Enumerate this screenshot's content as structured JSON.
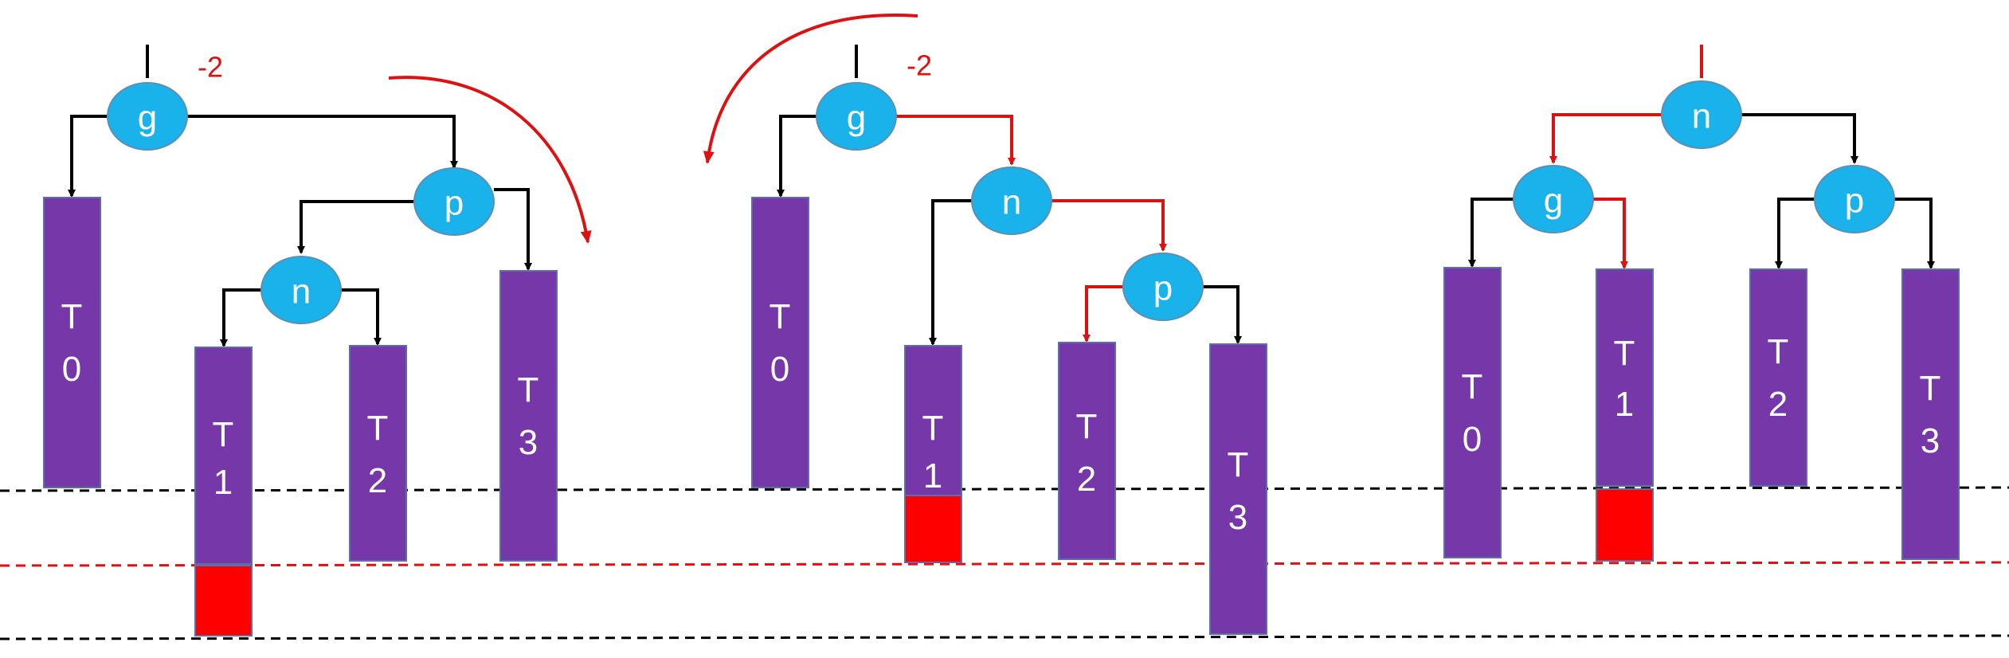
{
  "colors": {
    "node_fill": "#1AB2EA",
    "node_stroke": "#5A8FB8",
    "subtree_fill": "#7637A8",
    "subtree_stroke": "#5B6FA8",
    "height_block": "#FF0000",
    "edge_black": "#000000",
    "edge_red": "#DD1111",
    "guide_black": "#000000",
    "guide_red": "#DD1111",
    "text_white": "#FFFFFF"
  },
  "panels": [
    {
      "id": "before",
      "balance_factor": "-2",
      "nodes": [
        {
          "id": "g",
          "label": "g"
        },
        {
          "id": "p",
          "label": "p"
        },
        {
          "id": "n",
          "label": "n"
        }
      ],
      "subtrees": [
        {
          "id": "t0",
          "label": [
            "T",
            "0"
          ],
          "extra_block": false
        },
        {
          "id": "t1",
          "label": [
            "T",
            "1"
          ],
          "extra_block": true
        },
        {
          "id": "t2",
          "label": [
            "T",
            "2"
          ],
          "extra_block": false
        },
        {
          "id": "t3",
          "label": [
            "T",
            "3"
          ],
          "extra_block": false
        }
      ],
      "rotation_arrow": "clockwise-right"
    },
    {
      "id": "after-first-rotation",
      "balance_factor": "-2",
      "nodes": [
        {
          "id": "g",
          "label": "g"
        },
        {
          "id": "n",
          "label": "n"
        },
        {
          "id": "p",
          "label": "p"
        }
      ],
      "subtrees": [
        {
          "id": "t0",
          "label": [
            "T",
            "0"
          ],
          "extra_block": false
        },
        {
          "id": "t1",
          "label": [
            "T",
            "1"
          ],
          "extra_block": true
        },
        {
          "id": "t2",
          "label": [
            "T",
            "2"
          ],
          "extra_block": false
        },
        {
          "id": "t3",
          "label": [
            "T",
            "3"
          ],
          "extra_block": false
        }
      ],
      "rotation_arrow": "counterclockwise-left"
    },
    {
      "id": "balanced",
      "balance_factor": "",
      "nodes": [
        {
          "id": "n",
          "label": "n"
        },
        {
          "id": "g",
          "label": "g"
        },
        {
          "id": "p",
          "label": "p"
        }
      ],
      "subtrees": [
        {
          "id": "t0",
          "label": [
            "T",
            "0"
          ],
          "extra_block": false
        },
        {
          "id": "t1",
          "label": [
            "T",
            "1"
          ],
          "extra_block": true
        },
        {
          "id": "t2",
          "label": [
            "T",
            "2"
          ],
          "extra_block": false
        },
        {
          "id": "t3",
          "label": [
            "T",
            "3"
          ],
          "extra_block": false
        }
      ],
      "rotation_arrow": ""
    }
  ]
}
